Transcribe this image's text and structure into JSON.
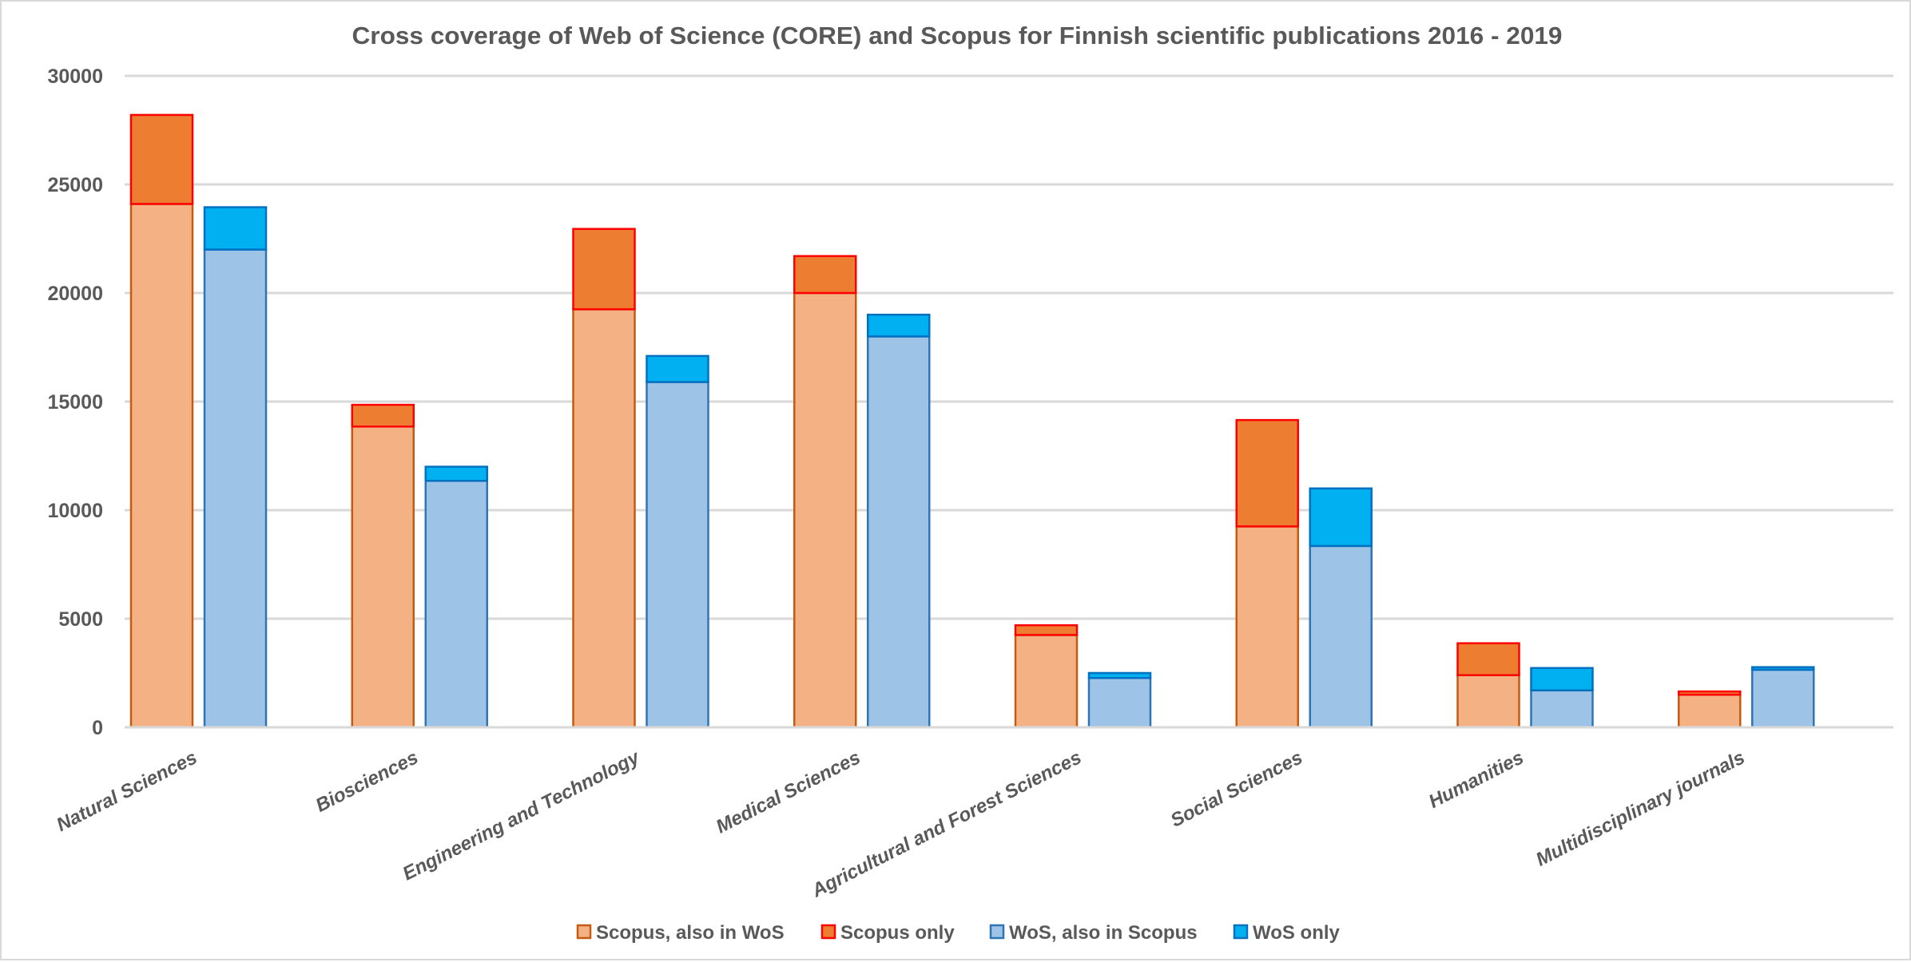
{
  "chart_data": {
    "type": "bar",
    "subtype": "grouped-stacked",
    "title": "Cross coverage of Web of Science (CORE) and Scopus for Finnish scientific publications 2016 - 2019",
    "xlabel": "",
    "ylabel": "",
    "ylim": [
      0,
      30000
    ],
    "yticks": [
      0,
      5000,
      10000,
      15000,
      20000,
      25000,
      30000
    ],
    "ytick_labels": [
      "0",
      "5000",
      "10000",
      "15000",
      "20000",
      "25000",
      "30000"
    ],
    "grid": true,
    "legend_position": "bottom",
    "categories": [
      "Natural Sciences",
      "Biosciences",
      "Engineering and Technology",
      "Medical Sciences",
      "Agricultural and Forest Sciences",
      "Social Sciences",
      "Humanities",
      "Multidisciplinary journals"
    ],
    "series": [
      {
        "name": "Scopus, also in WoS",
        "stack": "Scopus",
        "fill": "#F4B183",
        "stroke": "#C55A11",
        "values": [
          24100,
          13850,
          19250,
          20000,
          4250,
          9250,
          2400,
          1500
        ]
      },
      {
        "name": "Scopus only",
        "stack": "Scopus",
        "fill": "#ED7D31",
        "stroke": "#FF0000",
        "values": [
          4100,
          1000,
          3700,
          1700,
          450,
          4900,
          1470,
          150
        ]
      },
      {
        "name": "WoS, also in Scopus",
        "stack": "WoS",
        "fill": "#9DC3E6",
        "stroke": "#2E75B6",
        "values": [
          22000,
          11350,
          15900,
          18000,
          2270,
          8350,
          1700,
          2650
        ]
      },
      {
        "name": "WoS only",
        "stack": "WoS",
        "fill": "#00B0F0",
        "stroke": "#0070C0",
        "values": [
          1950,
          650,
          1200,
          1000,
          230,
          2650,
          1030,
          120
        ]
      }
    ]
  }
}
